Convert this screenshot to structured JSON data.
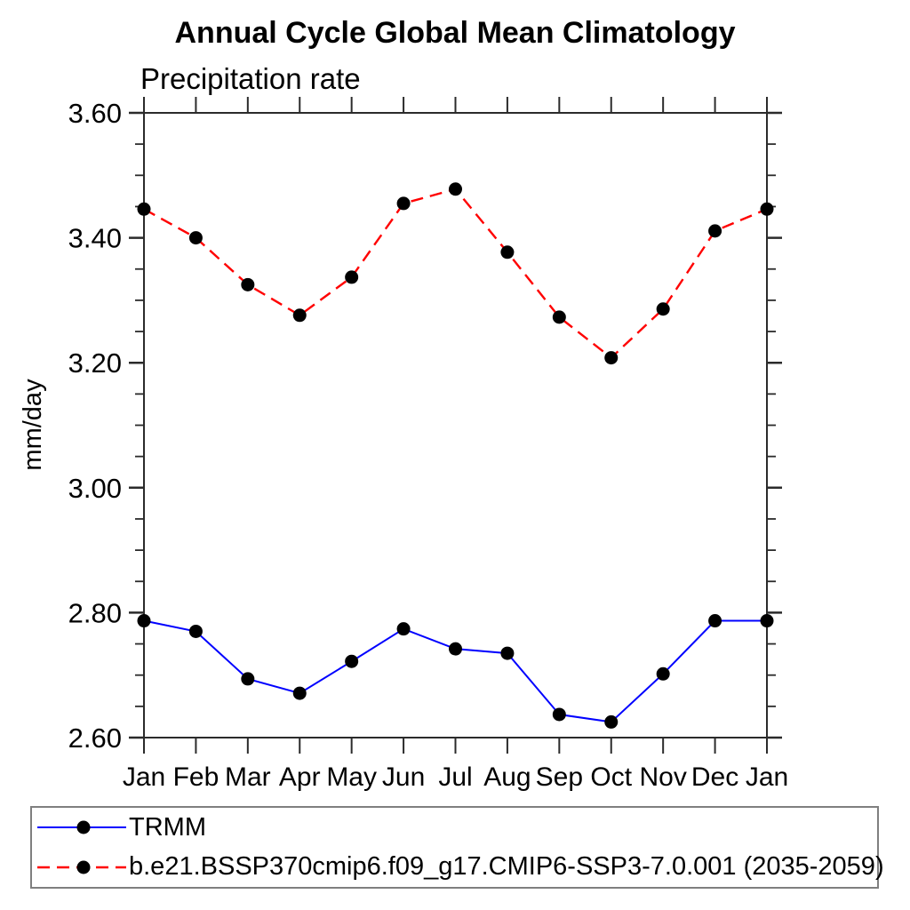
{
  "header": {
    "title": "Annual Cycle Global Mean Climatology",
    "subtitle": "Precipitation rate"
  },
  "chart_data": {
    "type": "line",
    "title": "Annual Cycle Global Mean Climatology",
    "subtitle": "Precipitation rate",
    "xlabel": "",
    "ylabel": "mm/day",
    "categories": [
      "Jan",
      "Feb",
      "Mar",
      "Apr",
      "May",
      "Jun",
      "Jul",
      "Aug",
      "Sep",
      "Oct",
      "Nov",
      "Dec",
      "Jan"
    ],
    "series": [
      {
        "name": "TRMM",
        "color": "#0000ff",
        "line_style": "solid",
        "marker": "filled-black-circle",
        "values": [
          2.787,
          2.77,
          2.694,
          2.671,
          2.722,
          2.774,
          2.742,
          2.735,
          2.637,
          2.625,
          2.702,
          2.787,
          2.787
        ]
      },
      {
        "name": "b.e21.BSSP370cmip6.f09_g17.CMIP6-SSP3-7.0.001 (2035-2059)",
        "color": "#ff0000",
        "line_style": "dashed",
        "marker": "filled-black-circle",
        "values": [
          3.446,
          3.4,
          3.325,
          3.276,
          3.337,
          3.455,
          3.478,
          3.377,
          3.273,
          3.208,
          3.286,
          3.411,
          3.446
        ]
      }
    ],
    "ylim": [
      2.6,
      3.6
    ],
    "ytick_major": [
      2.6,
      2.8,
      3.0,
      3.2,
      3.4,
      3.6
    ],
    "ytick_minor_step": 0.05,
    "ytick_label_format": "0.00",
    "grid": false,
    "axis_color": "#2b2b2b",
    "marker_color": "#000000",
    "legend_position": "bottom-box"
  }
}
